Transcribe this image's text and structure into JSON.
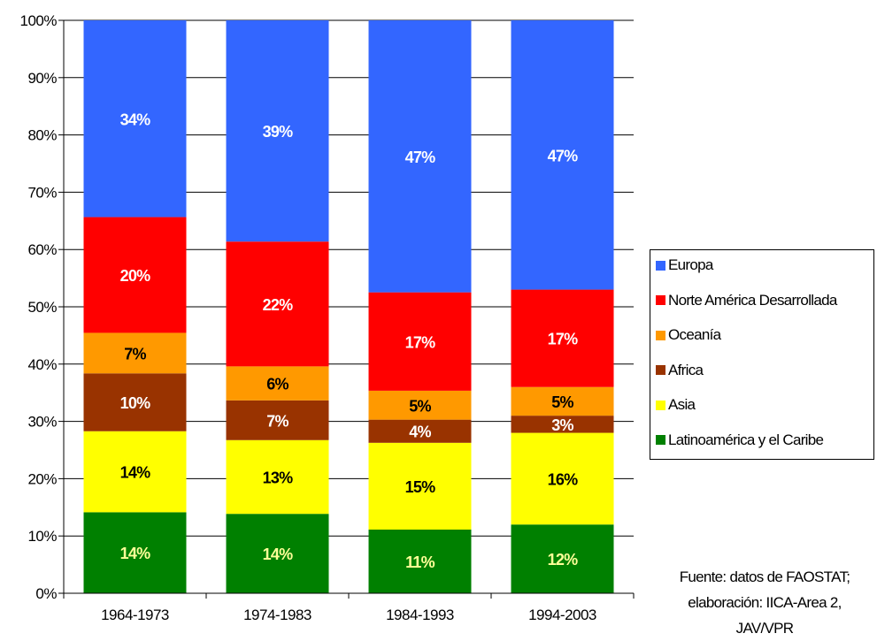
{
  "chart_data": {
    "type": "bar",
    "stacked": true,
    "normalized": true,
    "categories": [
      "1964-1973",
      "1974-1983",
      "1984-1993",
      "1994-2003"
    ],
    "ylim": [
      0,
      100
    ],
    "yticks": [
      "0%",
      "10%",
      "20%",
      "30%",
      "40%",
      "50%",
      "60%",
      "70%",
      "80%",
      "90%",
      "100%"
    ],
    "grid": true,
    "legend_position": "right",
    "series": [
      {
        "name": "Latinoamérica y el Caribe",
        "color": "#008000",
        "label_color": "#ffff99",
        "values": [
          14,
          14,
          11,
          12
        ],
        "labels": [
          "14%",
          "14%",
          "11%",
          "12%"
        ]
      },
      {
        "name": "Asia",
        "color": "#ffff00",
        "label_color": "#000000",
        "values": [
          14,
          13,
          15,
          16
        ],
        "labels": [
          "14%",
          "13%",
          "15%",
          "16%"
        ]
      },
      {
        "name": "Africa",
        "color": "#993300",
        "label_color": "#ffffff",
        "values": [
          10,
          7,
          4,
          3
        ],
        "labels": [
          "10%",
          "7%",
          "4%",
          "3%"
        ]
      },
      {
        "name": "Oceanía",
        "color": "#ff9900",
        "label_color": "#000000",
        "values": [
          7,
          6,
          5,
          5
        ],
        "labels": [
          "7%",
          "6%",
          "5%",
          "5%"
        ]
      },
      {
        "name": "Norte América Desarrollada",
        "color": "#ff0000",
        "label_color": "#ffffff",
        "values": [
          20,
          22,
          17,
          17
        ],
        "labels": [
          "20%",
          "22%",
          "17%",
          "17%"
        ]
      },
      {
        "name": "Europa",
        "color": "#3366ff",
        "label_color": "#ffffff",
        "values": [
          34,
          39,
          47,
          47
        ],
        "labels": [
          "34%",
          "39%",
          "47%",
          "47%"
        ]
      }
    ]
  },
  "legend_order": [
    "Europa",
    "Norte América Desarrollada",
    "Oceanía",
    "Africa",
    "Asia",
    "Latinoamérica y el Caribe"
  ],
  "source_note": [
    "Fuente: datos de FAOSTAT;",
    "elaboración: IICA-Area 2,",
    "JAV/VPR"
  ]
}
